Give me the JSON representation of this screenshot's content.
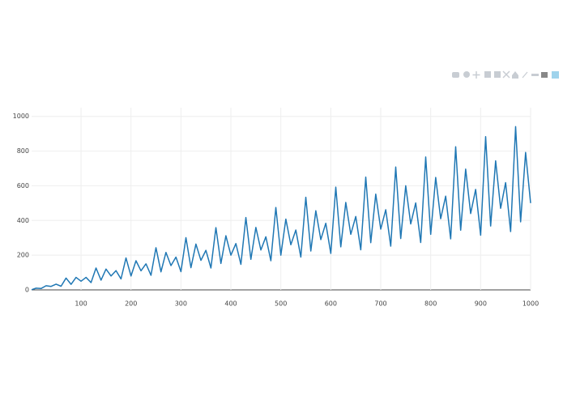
{
  "chart_data": {
    "type": "line",
    "x": [
      1,
      10,
      20,
      30,
      40,
      50,
      60,
      70,
      80,
      90,
      100,
      110,
      120,
      130,
      140,
      150,
      160,
      170,
      180,
      190,
      200,
      210,
      220,
      230,
      240,
      250,
      260,
      270,
      280,
      290,
      300,
      310,
      320,
      330,
      340,
      350,
      360,
      370,
      380,
      390,
      400,
      410,
      420,
      430,
      440,
      450,
      460,
      470,
      480,
      490,
      500,
      510,
      520,
      530,
      540,
      550,
      560,
      570,
      580,
      590,
      600,
      610,
      620,
      630,
      640,
      650,
      660,
      670,
      680,
      690,
      700,
      710,
      720,
      730,
      740,
      750,
      760,
      770,
      780,
      790,
      800,
      810,
      820,
      830,
      840,
      850,
      860,
      870,
      880,
      890,
      900,
      910,
      920,
      930,
      940,
      950,
      960,
      970,
      980,
      990,
      1000
    ],
    "series": [
      {
        "color": "#1f77b4",
        "values": [
          1,
          10,
          8,
          24,
          20,
          33,
          21,
          68,
          32,
          72,
          50,
          72,
          42,
          126,
          56,
          120,
          80,
          111,
          63,
          184,
          80,
          168,
          110,
          150,
          84,
          243,
          104,
          216,
          140,
          189,
          105,
          301,
          128,
          264,
          170,
          228,
          126,
          359,
          152,
          312,
          200,
          267,
          147,
          417,
          176,
          360,
          230,
          306,
          168,
          475,
          200,
          408,
          260,
          345,
          189,
          534,
          224,
          456,
          290,
          384,
          210,
          592,
          248,
          504,
          320,
          423,
          231,
          650,
          272,
          552,
          350,
          462,
          252,
          708,
          296,
          600,
          380,
          501,
          273,
          766,
          320,
          648,
          410,
          540,
          294,
          825,
          344,
          696,
          440,
          579,
          315,
          883,
          368,
          744,
          470,
          618,
          336,
          941,
          392,
          792,
          500
        ]
      }
    ],
    "xlim": [
      1,
      1000
    ],
    "xticks": [
      100,
      200,
      300,
      400,
      500,
      600,
      700,
      800,
      900,
      1000
    ],
    "ylim": [
      0,
      1050
    ],
    "yticks": [
      0,
      200,
      400,
      600,
      800,
      1000
    ],
    "grid": true
  }
}
